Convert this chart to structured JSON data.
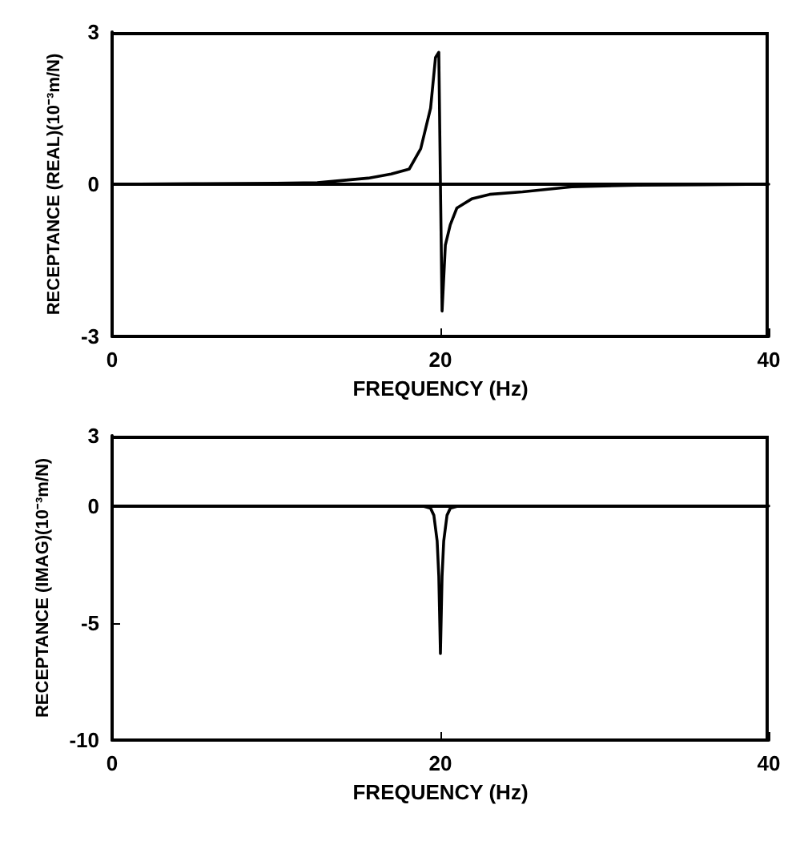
{
  "chart_data": [
    {
      "type": "line",
      "xlabel": "FREQUENCY (Hz)",
      "ylabel": "RECEPTANCE (REAL)(10⁻³m/N)",
      "x": [
        0,
        5,
        10,
        12.5,
        15.6,
        17,
        18.1,
        18.8,
        19.4,
        19.7,
        19.9,
        20,
        20.1,
        20.3,
        20.6,
        21,
        21.9,
        23,
        25,
        28,
        32,
        36,
        40
      ],
      "series": [
        {
          "color": "#000000",
          "values": [
            0,
            0.01,
            0.02,
            0.03,
            0.12,
            0.2,
            0.3,
            0.7,
            1.5,
            2.5,
            2.6,
            0,
            -2.5,
            -1.2,
            -0.8,
            -0.47,
            -0.29,
            -0.2,
            -0.15,
            -0.05,
            -0.02,
            -0.01,
            0
          ]
        }
      ],
      "xlim": [
        0,
        40
      ],
      "xticks": [
        0,
        20,
        40
      ],
      "ylim": [
        -3,
        3
      ],
      "yticks": [
        -3,
        0,
        3
      ],
      "ref_lines": [
        {
          "axis": "y",
          "value": 0,
          "color": "#000000"
        }
      ],
      "grid": false,
      "marker": "none",
      "line_style": "solid"
    },
    {
      "type": "line",
      "xlabel": "FREQUENCY (Hz)",
      "ylabel": "RECEPTANCE (IMAG)(10⁻³m/N)",
      "x": [
        0,
        10,
        19,
        19.4,
        19.6,
        19.8,
        19.9,
        20,
        20.1,
        20.2,
        20.4,
        20.6,
        21,
        30,
        40
      ],
      "series": [
        {
          "color": "#000000",
          "values": [
            0,
            0,
            -0.02,
            -0.1,
            -0.4,
            -1.5,
            -3,
            -6.3,
            -3,
            -1.5,
            -0.4,
            -0.1,
            -0.02,
            0,
            0
          ]
        }
      ],
      "xlim": [
        0,
        40
      ],
      "xticks": [
        0,
        20,
        40
      ],
      "ylim": [
        -10,
        3
      ],
      "yticks": [
        -10,
        -5,
        0,
        3
      ],
      "ref_lines": [
        {
          "axis": "y",
          "value": 0,
          "color": "#000000"
        }
      ],
      "grid": false,
      "marker": "none",
      "line_style": "solid"
    }
  ]
}
